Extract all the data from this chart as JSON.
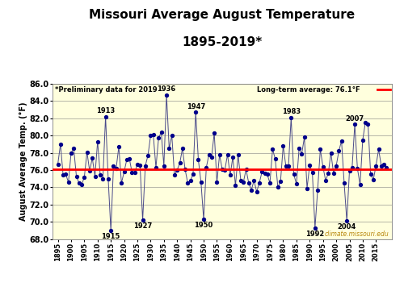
{
  "title1": "Missouri Average August Temperature",
  "title2": "1895-2019*",
  "ylabel": "August Average Temp. (°F)",
  "long_term_avg": 76.1,
  "long_term_label": "Long-term average: 76.1°F",
  "preliminary_label": "*Preliminary data for 2019",
  "watermark": "climate.missouri.edu",
  "ylim": [
    68.0,
    86.0
  ],
  "yticks": [
    68.0,
    70.0,
    72.0,
    74.0,
    76.0,
    78.0,
    80.0,
    82.0,
    84.0,
    86.0
  ],
  "background_color": "#ffffdd",
  "line_color": "#4a4a8a",
  "dot_color": "#00008b",
  "avg_line_color": "#ff0000",
  "high_annotations": {
    "1913": 82.2,
    "1936": 84.7,
    "1947": 82.7,
    "1983": 82.1,
    "2007": 81.3
  },
  "low_annotations": {
    "1915": 69.0,
    "1927": 70.2,
    "1950": 70.3,
    "1992": 69.3,
    "2004": 70.1
  },
  "years": [
    1895,
    1896,
    1897,
    1898,
    1899,
    1900,
    1901,
    1902,
    1903,
    1904,
    1905,
    1906,
    1907,
    1908,
    1909,
    1910,
    1911,
    1912,
    1913,
    1914,
    1915,
    1916,
    1917,
    1918,
    1919,
    1920,
    1921,
    1922,
    1923,
    1924,
    1925,
    1926,
    1927,
    1928,
    1929,
    1930,
    1931,
    1932,
    1933,
    1934,
    1935,
    1936,
    1937,
    1938,
    1939,
    1940,
    1941,
    1942,
    1943,
    1944,
    1945,
    1946,
    1947,
    1948,
    1949,
    1950,
    1951,
    1952,
    1953,
    1954,
    1955,
    1956,
    1957,
    1958,
    1959,
    1960,
    1961,
    1962,
    1963,
    1964,
    1965,
    1966,
    1967,
    1968,
    1969,
    1970,
    1971,
    1972,
    1973,
    1974,
    1975,
    1976,
    1977,
    1978,
    1979,
    1980,
    1981,
    1982,
    1983,
    1984,
    1985,
    1986,
    1987,
    1988,
    1989,
    1990,
    1991,
    1992,
    1993,
    1994,
    1995,
    1996,
    1997,
    1998,
    1999,
    2000,
    2001,
    2002,
    2003,
    2004,
    2005,
    2006,
    2007,
    2008,
    2009,
    2010,
    2011,
    2012,
    2013,
    2014,
    2015,
    2016,
    2017,
    2018,
    2019
  ],
  "temps": [
    76.7,
    79.0,
    75.4,
    75.5,
    74.6,
    78.0,
    78.5,
    75.3,
    74.5,
    74.3,
    75.2,
    78.1,
    75.9,
    77.4,
    75.3,
    79.3,
    75.4,
    75.0,
    82.2,
    75.0,
    69.0,
    76.5,
    76.2,
    78.7,
    74.5,
    75.8,
    77.2,
    77.3,
    75.7,
    75.7,
    76.7,
    76.6,
    70.2,
    76.5,
    77.7,
    80.0,
    80.1,
    76.3,
    79.7,
    80.4,
    76.5,
    84.7,
    78.5,
    80.0,
    75.4,
    76.0,
    76.8,
    78.5,
    76.1,
    74.5,
    74.8,
    75.5,
    82.7,
    77.2,
    74.6,
    70.3,
    76.3,
    77.8,
    77.5,
    80.3,
    74.6,
    77.8,
    76.1,
    76.0,
    77.8,
    75.4,
    77.5,
    74.2,
    77.8,
    74.8,
    74.6,
    76.1,
    74.5,
    73.7,
    74.8,
    73.5,
    74.5,
    75.8,
    75.6,
    75.5,
    74.5,
    78.4,
    77.3,
    74.0,
    74.7,
    78.8,
    76.5,
    76.5,
    82.1,
    75.5,
    74.4,
    78.5,
    77.9,
    79.8,
    73.9,
    76.6,
    75.7,
    69.3,
    73.7,
    78.4,
    76.4,
    74.8,
    75.6,
    78.0,
    75.6,
    76.5,
    78.2,
    79.4,
    74.5,
    70.1,
    75.9,
    76.3,
    81.3,
    76.2,
    74.3,
    79.5,
    81.5,
    81.3,
    75.5,
    74.9,
    76.5,
    78.4,
    76.5,
    76.7,
    76.3
  ]
}
